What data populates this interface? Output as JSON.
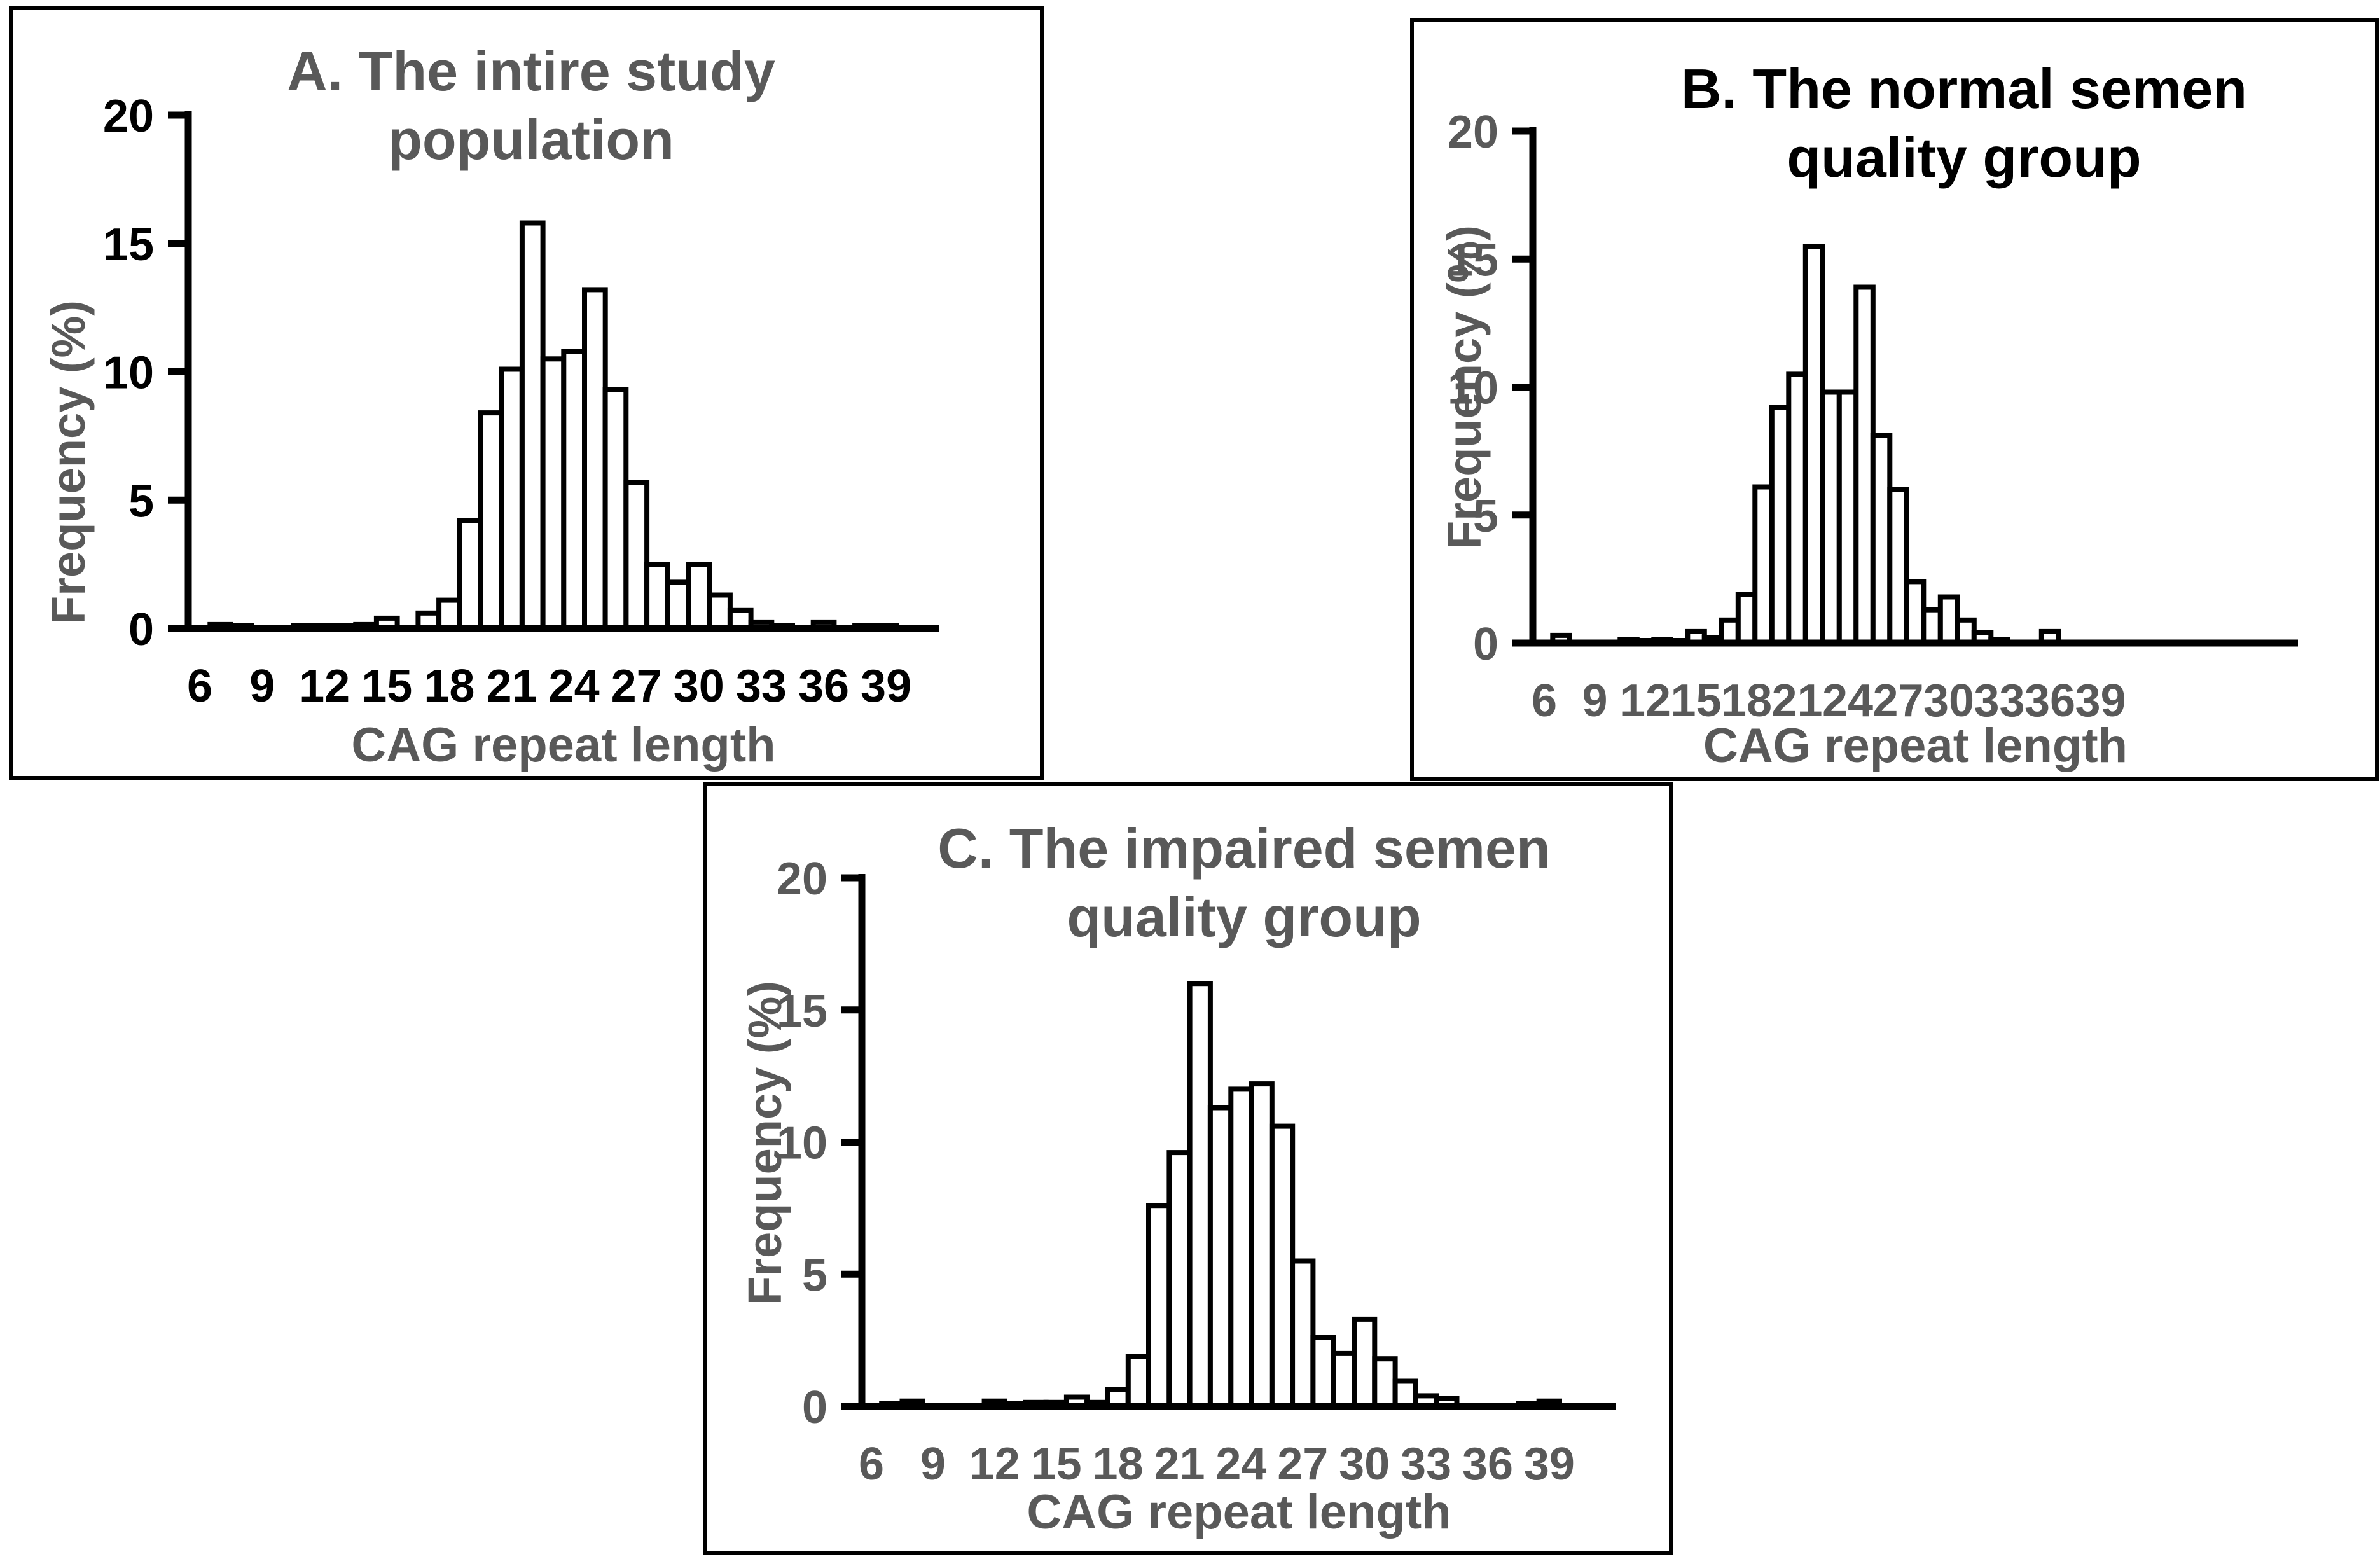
{
  "colors": {
    "gray": "#595959",
    "black": "#000000",
    "bar_fill": "#ffffff",
    "background": "#ffffff"
  },
  "chart_data": [
    {
      "id": "A",
      "type": "bar",
      "title_line1": "A. The intire study",
      "title_line2": "population",
      "title_color": "gray",
      "tick_color": "black",
      "label_color": "gray",
      "ylabel": "Frequency (%)",
      "xlabel": "CAG repeat length",
      "ylim": [
        0,
        20
      ],
      "yticks": [
        0,
        5,
        10,
        15,
        20
      ],
      "xticks": [
        6,
        9,
        12,
        15,
        18,
        21,
        24,
        27,
        30,
        33,
        36,
        39
      ],
      "x": [
        6,
        7,
        8,
        9,
        10,
        11,
        12,
        13,
        14,
        15,
        16,
        17,
        18,
        19,
        20,
        21,
        22,
        23,
        24,
        25,
        26,
        27,
        28,
        29,
        30,
        31,
        32,
        33,
        34,
        35,
        36,
        37,
        38,
        39
      ],
      "values": [
        0.05,
        0.15,
        0.1,
        0,
        0.05,
        0.1,
        0.1,
        0.1,
        0.15,
        0.4,
        0,
        0.6,
        1.1,
        4.2,
        8.4,
        10.1,
        15.8,
        10.5,
        10.8,
        13.2,
        9.3,
        5.7,
        2.5,
        1.8,
        2.5,
        1.3,
        0.7,
        0.25,
        0.1,
        0,
        0.25,
        0,
        0.1,
        0.1
      ]
    },
    {
      "id": "B",
      "type": "bar",
      "title_line1": "B. The normal semen",
      "title_line2": "quality group",
      "title_color": "black",
      "tick_color": "gray",
      "label_color": "gray",
      "ylabel": "Frequency (%)",
      "xlabel": "CAG repeat length",
      "ylim": [
        0,
        20
      ],
      "yticks": [
        0,
        5,
        10,
        15,
        20
      ],
      "xticks": [
        6,
        9,
        12,
        15,
        18,
        21,
        24,
        27,
        30,
        33,
        36,
        39
      ],
      "x": [
        6,
        7,
        8,
        9,
        10,
        11,
        12,
        13,
        14,
        15,
        16,
        17,
        18,
        19,
        20,
        21,
        22,
        23,
        24,
        25,
        26,
        27,
        28,
        29,
        30,
        31,
        32,
        33,
        34,
        35,
        36,
        37,
        38,
        39
      ],
      "values": [
        0,
        0.3,
        0,
        0,
        0,
        0.15,
        0.1,
        0.15,
        0.1,
        0.45,
        0.2,
        0.9,
        1.9,
        6.1,
        9.2,
        10.5,
        15.5,
        9.8,
        9.8,
        13.9,
        8.1,
        6.0,
        2.4,
        1.3,
        1.8,
        0.9,
        0.4,
        0.15,
        0,
        0,
        0.45,
        0,
        0,
        0
      ]
    },
    {
      "id": "C",
      "type": "bar",
      "title_line1": "C. The impaired semen",
      "title_line2": "quality group",
      "title_color": "gray",
      "tick_color": "gray",
      "label_color": "gray",
      "ylabel": "Frequency (%)",
      "xlabel": "CAG repeat length",
      "ylim": [
        0,
        20
      ],
      "yticks": [
        0,
        5,
        10,
        15,
        20
      ],
      "xticks": [
        6,
        9,
        12,
        15,
        18,
        21,
        24,
        27,
        30,
        33,
        36,
        39
      ],
      "x": [
        6,
        7,
        8,
        9,
        10,
        11,
        12,
        13,
        14,
        15,
        16,
        17,
        18,
        19,
        20,
        21,
        22,
        23,
        24,
        25,
        26,
        27,
        28,
        29,
        30,
        31,
        32,
        33,
        34,
        35,
        36,
        37,
        38,
        39
      ],
      "values": [
        0,
        0.1,
        0.2,
        0,
        0,
        0,
        0.2,
        0.1,
        0.15,
        0.15,
        0.35,
        0.15,
        0.65,
        1.9,
        7.6,
        9.6,
        16.0,
        11.3,
        12.0,
        12.2,
        10.6,
        5.5,
        2.6,
        2.0,
        3.3,
        1.8,
        0.95,
        0.4,
        0.3,
        0,
        0,
        0,
        0.1,
        0.2
      ]
    }
  ]
}
